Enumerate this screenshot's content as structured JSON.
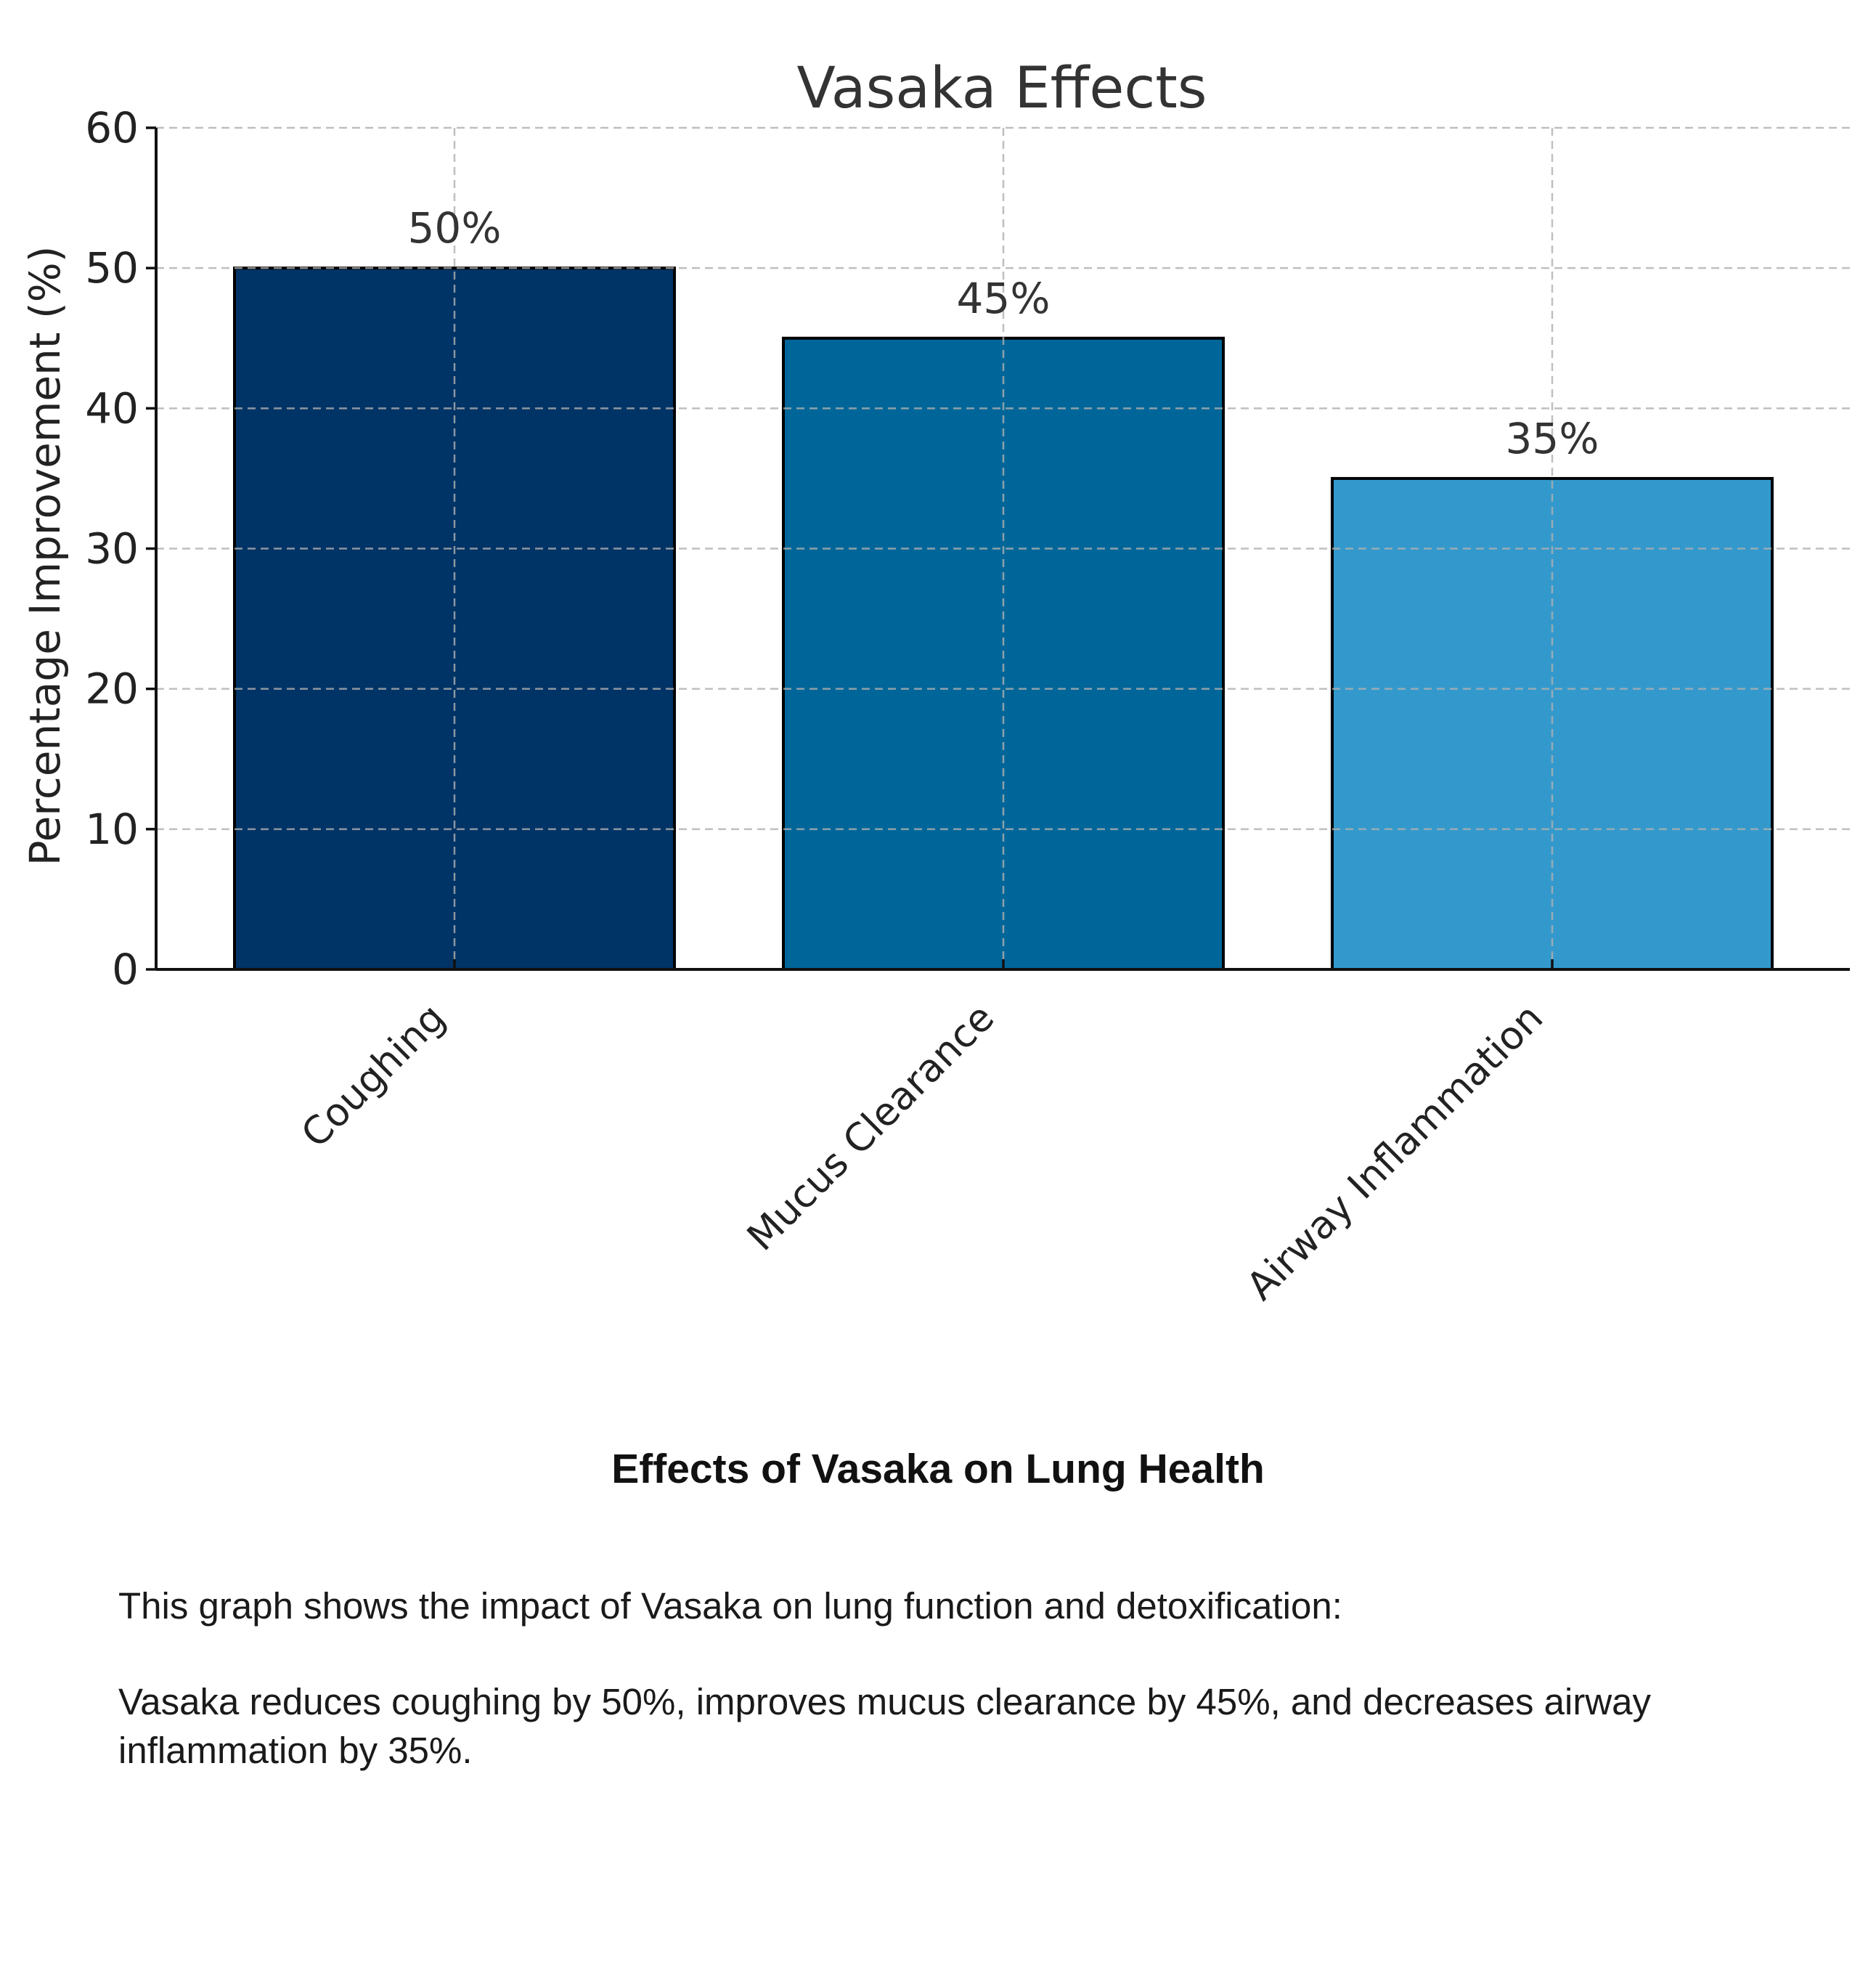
{
  "chart_data": {
    "type": "bar",
    "title": "Vasaka Effects",
    "xlabel": "",
    "ylabel": "Percentage Improvement (%)",
    "categories": [
      "Coughing",
      "Mucus Clearance",
      "Airway Inflammation"
    ],
    "values": [
      50,
      45,
      35
    ],
    "data_labels": [
      "50%",
      "45%",
      "35%"
    ],
    "ylim": [
      0,
      60
    ],
    "yticks": [
      0,
      10,
      20,
      30,
      40,
      50,
      60
    ],
    "grid": true,
    "colors": [
      "#003366",
      "#006699",
      "#3399CC"
    ]
  },
  "caption": {
    "title": "Effects of Vasaka on Lung Health",
    "intro": "This graph shows the impact of Vasaka on lung function and detoxification:",
    "summary": "Vasaka reduces coughing by 50%, improves mucus clearance by 45%, and decreases airway inflammation by 35%."
  }
}
